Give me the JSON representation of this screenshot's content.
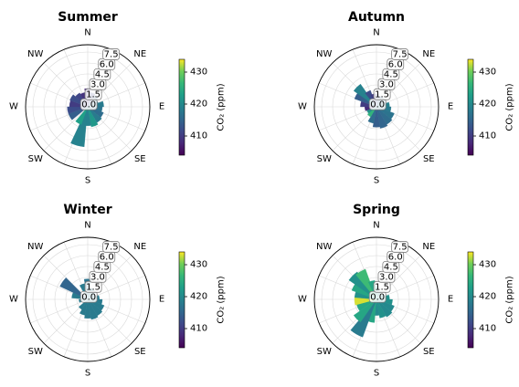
{
  "figure": {
    "colormap": "viridis",
    "colors": {
      "background": "#ffffff",
      "grid": "#d9d9d9",
      "axis": "#000000",
      "label_box_edge": "#808080"
    }
  },
  "chart_data": [
    {
      "type": "polar-bar",
      "title": "Summer",
      "directions": [
        "N",
        "NE",
        "E",
        "SE",
        "S",
        "SW",
        "W",
        "NW"
      ],
      "radial_ticks": [
        "0.0",
        "1.5",
        "3.0",
        "4.5",
        "6.0",
        "7.5"
      ],
      "rlim": [
        0,
        8.5
      ],
      "colorbar": {
        "label": "CO₂ (ppm)",
        "ticks": [
          "410",
          "420",
          "430"
        ],
        "range": [
          404,
          434
        ]
      },
      "sectors": [
        {
          "dir_deg": 0,
          "speed": 2.5,
          "co2": 408
        },
        {
          "dir_deg": 20,
          "speed": 2.0,
          "co2": 411
        },
        {
          "dir_deg": 40,
          "speed": 1.8,
          "co2": 414
        },
        {
          "dir_deg": 60,
          "speed": 1.5,
          "co2": 417
        },
        {
          "dir_deg": 80,
          "speed": 2.2,
          "co2": 418
        },
        {
          "dir_deg": 100,
          "speed": 2.0,
          "co2": 417
        },
        {
          "dir_deg": 120,
          "speed": 2.3,
          "co2": 416
        },
        {
          "dir_deg": 140,
          "speed": 2.5,
          "co2": 418
        },
        {
          "dir_deg": 160,
          "speed": 2.8,
          "co2": 422
        },
        {
          "dir_deg": 180,
          "speed": 2.6,
          "co2": 419
        },
        {
          "dir_deg": 195,
          "speed": 5.5,
          "co2": 419
        },
        {
          "dir_deg": 210,
          "speed": 2.6,
          "co2": 423
        },
        {
          "dir_deg": 240,
          "speed": 2.8,
          "co2": 414
        },
        {
          "dir_deg": 260,
          "speed": 2.8,
          "co2": 412
        },
        {
          "dir_deg": 280,
          "speed": 2.5,
          "co2": 410
        },
        {
          "dir_deg": 300,
          "speed": 2.6,
          "co2": 412
        },
        {
          "dir_deg": 320,
          "speed": 2.2,
          "co2": 411
        },
        {
          "dir_deg": 340,
          "speed": 2.0,
          "co2": 409
        }
      ]
    },
    {
      "type": "polar-bar",
      "title": "Autumn",
      "directions": [
        "N",
        "NE",
        "E",
        "SE",
        "S",
        "SW",
        "W",
        "NW"
      ],
      "radial_ticks": [
        "0.0",
        "1.5",
        "3.0",
        "4.5",
        "6.0",
        "7.5"
      ],
      "rlim": [
        0,
        8.5
      ],
      "colorbar": {
        "label": "CO₂ (ppm)",
        "ticks": [
          "410",
          "420",
          "430"
        ],
        "range": [
          404,
          434
        ]
      },
      "sectors": [
        {
          "dir_deg": 0,
          "speed": 1.8,
          "co2": 412
        },
        {
          "dir_deg": 20,
          "speed": 1.5,
          "co2": 414
        },
        {
          "dir_deg": 40,
          "speed": 1.5,
          "co2": 416
        },
        {
          "dir_deg": 60,
          "speed": 1.3,
          "co2": 418
        },
        {
          "dir_deg": 80,
          "speed": 1.8,
          "co2": 419
        },
        {
          "dir_deg": 100,
          "speed": 2.0,
          "co2": 418
        },
        {
          "dir_deg": 120,
          "speed": 2.6,
          "co2": 417
        },
        {
          "dir_deg": 140,
          "speed": 2.8,
          "co2": 416
        },
        {
          "dir_deg": 160,
          "speed": 3.0,
          "co2": 415
        },
        {
          "dir_deg": 180,
          "speed": 2.8,
          "co2": 414
        },
        {
          "dir_deg": 200,
          "speed": 2.3,
          "co2": 416
        },
        {
          "dir_deg": 220,
          "speed": 1.6,
          "co2": 426
        },
        {
          "dir_deg": 240,
          "speed": 1.4,
          "co2": 421
        },
        {
          "dir_deg": 260,
          "speed": 1.6,
          "co2": 408
        },
        {
          "dir_deg": 280,
          "speed": 2.2,
          "co2": 410
        },
        {
          "dir_deg": 300,
          "speed": 3.2,
          "co2": 414
        },
        {
          "dir_deg": 315,
          "speed": 3.8,
          "co2": 419
        },
        {
          "dir_deg": 330,
          "speed": 2.4,
          "co2": 412
        },
        {
          "dir_deg": 345,
          "speed": 1.8,
          "co2": 410
        }
      ]
    },
    {
      "type": "polar-bar",
      "title": "Winter",
      "directions": [
        "N",
        "NE",
        "E",
        "SE",
        "S",
        "SW",
        "W",
        "NW"
      ],
      "radial_ticks": [
        "0.0",
        "1.5",
        "3.0",
        "4.5",
        "6.0",
        "7.5"
      ],
      "rlim": [
        0,
        8.5
      ],
      "colorbar": {
        "label": "CO₂ (ppm)",
        "ticks": [
          "410",
          "420",
          "430"
        ],
        "range": [
          404,
          434
        ]
      },
      "sectors": [
        {
          "dir_deg": 0,
          "speed": 2.8,
          "co2": 417
        },
        {
          "dir_deg": 20,
          "speed": 1.6,
          "co2": 418
        },
        {
          "dir_deg": 40,
          "speed": 1.5,
          "co2": 418
        },
        {
          "dir_deg": 60,
          "speed": 1.2,
          "co2": 418
        },
        {
          "dir_deg": 80,
          "speed": 1.6,
          "co2": 418
        },
        {
          "dir_deg": 100,
          "speed": 2.0,
          "co2": 418
        },
        {
          "dir_deg": 120,
          "speed": 2.4,
          "co2": 418
        },
        {
          "dir_deg": 140,
          "speed": 2.6,
          "co2": 418
        },
        {
          "dir_deg": 160,
          "speed": 2.8,
          "co2": 418
        },
        {
          "dir_deg": 180,
          "speed": 2.6,
          "co2": 418
        },
        {
          "dir_deg": 200,
          "speed": 2.2,
          "co2": 418
        },
        {
          "dir_deg": 220,
          "speed": 1.6,
          "co2": 418
        },
        {
          "dir_deg": 260,
          "speed": 1.2,
          "co2": 418
        },
        {
          "dir_deg": 285,
          "speed": 2.2,
          "co2": 418
        },
        {
          "dir_deg": 305,
          "speed": 4.2,
          "co2": 415
        },
        {
          "dir_deg": 340,
          "speed": 2.2,
          "co2": 418
        }
      ]
    },
    {
      "type": "polar-bar",
      "title": "Spring",
      "directions": [
        "N",
        "NE",
        "E",
        "SE",
        "S",
        "SW",
        "W",
        "NW"
      ],
      "radial_ticks": [
        "0.0",
        "1.5",
        "3.0",
        "4.5",
        "6.0",
        "7.5"
      ],
      "rlim": [
        0,
        8.5
      ],
      "colorbar": {
        "label": "CO₂ (ppm)",
        "ticks": [
          "410",
          "420",
          "430"
        ],
        "range": [
          404,
          434
        ]
      },
      "sectors": [
        {
          "dir_deg": 0,
          "speed": 1.8,
          "co2": 421
        },
        {
          "dir_deg": 25,
          "speed": 1.2,
          "co2": 421
        },
        {
          "dir_deg": 60,
          "speed": 1.2,
          "co2": 420
        },
        {
          "dir_deg": 80,
          "speed": 1.8,
          "co2": 421
        },
        {
          "dir_deg": 100,
          "speed": 2.2,
          "co2": 421
        },
        {
          "dir_deg": 120,
          "speed": 2.6,
          "co2": 420
        },
        {
          "dir_deg": 140,
          "speed": 2.8,
          "co2": 420
        },
        {
          "dir_deg": 160,
          "speed": 2.6,
          "co2": 421
        },
        {
          "dir_deg": 180,
          "speed": 2.2,
          "co2": 420
        },
        {
          "dir_deg": 195,
          "speed": 3.2,
          "co2": 424
        },
        {
          "dir_deg": 210,
          "speed": 5.5,
          "co2": 418
        },
        {
          "dir_deg": 225,
          "speed": 3.8,
          "co2": 424
        },
        {
          "dir_deg": 245,
          "speed": 2.8,
          "co2": 424
        },
        {
          "dir_deg": 265,
          "speed": 3.0,
          "co2": 433
        },
        {
          "dir_deg": 285,
          "speed": 3.0,
          "co2": 421
        },
        {
          "dir_deg": 300,
          "speed": 3.6,
          "co2": 424
        },
        {
          "dir_deg": 315,
          "speed": 4.6,
          "co2": 421
        },
        {
          "dir_deg": 330,
          "speed": 4.4,
          "co2": 427
        },
        {
          "dir_deg": 345,
          "speed": 2.6,
          "co2": 424
        }
      ]
    }
  ]
}
